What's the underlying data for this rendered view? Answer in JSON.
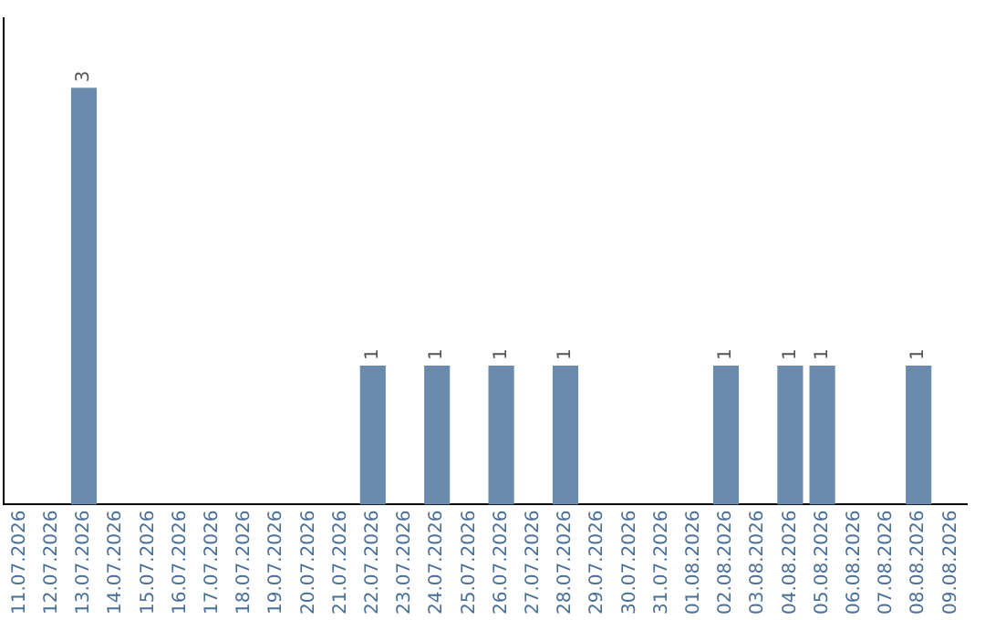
{
  "chart_data": {
    "type": "bar",
    "categories": [
      "11.07.2026",
      "12.07.2026",
      "13.07.2026",
      "14.07.2026",
      "15.07.2026",
      "16.07.2026",
      "17.07.2026",
      "18.07.2026",
      "19.07.2026",
      "20.07.2026",
      "21.07.2026",
      "22.07.2026",
      "23.07.2026",
      "24.07.2026",
      "25.07.2026",
      "26.07.2026",
      "27.07.2026",
      "28.07.2026",
      "29.07.2026",
      "30.07.2026",
      "31.07.2026",
      "01.08.2026",
      "02.08.2026",
      "03.08.2026",
      "04.08.2026",
      "05.08.2026",
      "06.08.2026",
      "07.08.2026",
      "08.08.2026",
      "09.08.2026"
    ],
    "values": [
      0,
      0,
      3,
      0,
      0,
      0,
      0,
      0,
      0,
      0,
      0,
      1,
      0,
      1,
      0,
      1,
      0,
      1,
      0,
      0,
      0,
      0,
      1,
      0,
      1,
      1,
      0,
      0,
      1,
      0
    ],
    "value_labels": [
      null,
      null,
      "3",
      null,
      null,
      null,
      null,
      null,
      null,
      null,
      null,
      "1",
      null,
      "1",
      null,
      "1",
      null,
      "1",
      null,
      null,
      null,
      null,
      "1",
      null,
      "1",
      "1",
      null,
      null,
      "1",
      null
    ],
    "color": "#6a8bab",
    "grid": false,
    "legend": false,
    "tick_labels": "x"
  }
}
